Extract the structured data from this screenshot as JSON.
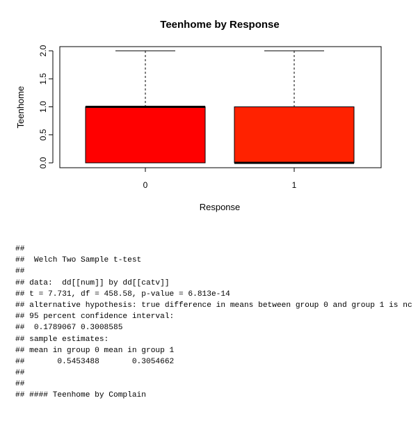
{
  "chart_data": {
    "type": "boxplot",
    "title": "Teenhome by Response",
    "xlabel": "Response",
    "ylabel": "Teenhome",
    "categories": [
      "0",
      "1"
    ],
    "yticks": [
      "0.0",
      "0.5",
      "1.0",
      "1.5",
      "2.0"
    ],
    "ytick_values": [
      0,
      0.5,
      1,
      1.5,
      2
    ],
    "ylim": [
      0,
      2
    ],
    "grid": false,
    "boxes": [
      {
        "category": "0",
        "min": 0,
        "q1": 0,
        "median": 1,
        "q3": 1,
        "max": 2,
        "color": "#ff0000"
      },
      {
        "category": "1",
        "min": 0,
        "q1": 0,
        "median": 0,
        "q3": 1,
        "max": 2,
        "color": "#ff2200"
      }
    ]
  },
  "console": {
    "lines": [
      "##",
      "##  Welch Two Sample t-test",
      "##",
      "## data:  dd[[num]] by dd[[catv]]",
      "## t = 7.731, df = 458.58, p-value = 6.813e-14",
      "## alternative hypothesis: true difference in means between group 0 and group 1 is nc",
      "## 95 percent confidence interval:",
      "##  0.1789067 0.3008585",
      "## sample estimates:",
      "## mean in group 0 mean in group 1",
      "##       0.5453488       0.3054662",
      "##",
      "##",
      "## #### Teenhome by Complain"
    ]
  }
}
